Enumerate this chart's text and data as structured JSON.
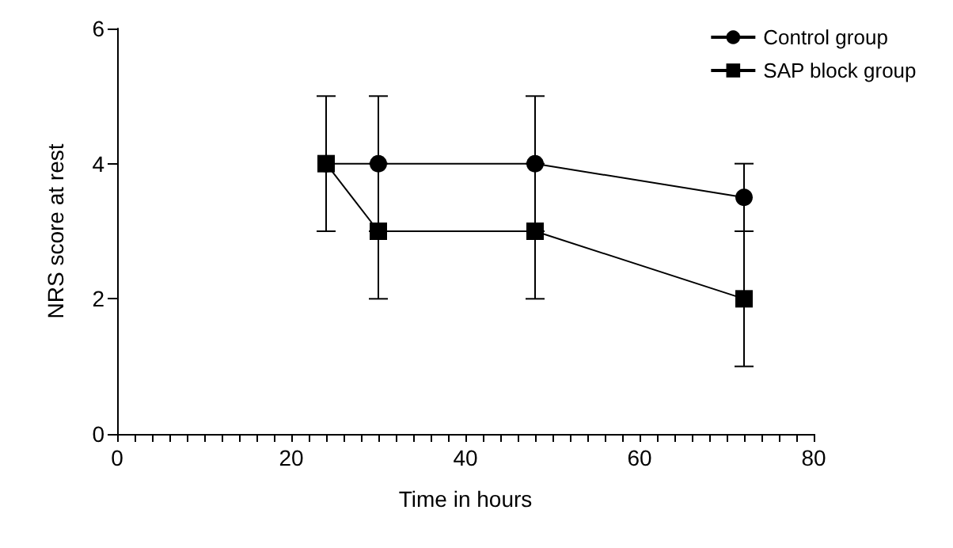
{
  "chart_data": {
    "type": "line",
    "xlabel": "Time in hours",
    "ylabel": "NRS score at rest",
    "x": [
      24,
      30,
      48,
      72
    ],
    "series": [
      {
        "name": "Control group",
        "color": "#000000",
        "marker": "circle",
        "values": [
          4,
          4,
          4,
          3.5
        ],
        "errors": [
          null,
          1,
          1,
          0.5
        ]
      },
      {
        "name": "SAP block group",
        "color": "#000000",
        "marker": "square",
        "values": [
          4,
          3,
          3,
          2
        ],
        "errors": [
          1,
          1,
          1,
          1
        ]
      }
    ],
    "xlim": [
      0,
      80
    ],
    "xticks": [
      0,
      20,
      40,
      60,
      80
    ],
    "ylim": [
      0,
      6
    ],
    "yticks": [
      0,
      2,
      4,
      6
    ],
    "grid": false,
    "legend": "top right",
    "line_style": "solid"
  }
}
